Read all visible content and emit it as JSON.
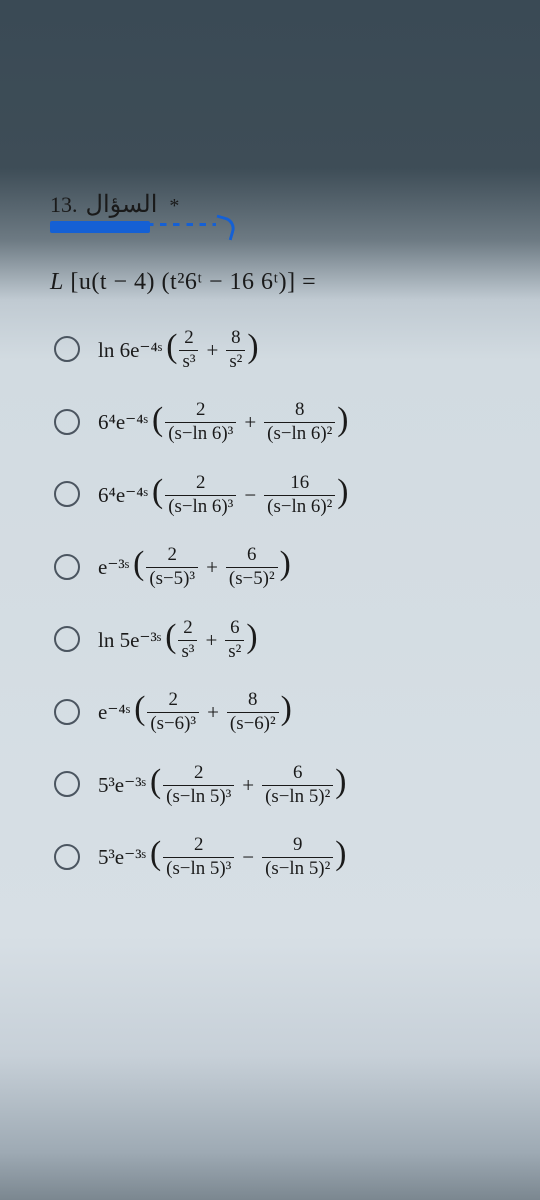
{
  "question": {
    "number": "13.",
    "title_ar": "السؤال",
    "star": "*",
    "stem_prefix": "L",
    "stem_inner": "[u(t − 4) (t²6ᵗ − 16 6ᵗ)] =",
    "underline_color": "#1560d4"
  },
  "options": [
    {
      "id": "opt-a",
      "lead": "ln 6e⁻⁴ˢ",
      "paren": {
        "terms": [
          {
            "num": "2",
            "den": "s³"
          },
          {
            "op": "+"
          },
          {
            "num": "8",
            "den": "s²"
          }
        ]
      }
    },
    {
      "id": "opt-b",
      "lead": "6⁴e⁻⁴ˢ",
      "paren": {
        "terms": [
          {
            "num": "2",
            "den": "(s−ln 6)³"
          },
          {
            "op": "+"
          },
          {
            "num": "8",
            "den": "(s−ln 6)²"
          }
        ]
      }
    },
    {
      "id": "opt-c",
      "lead": "6⁴e⁻⁴ˢ",
      "paren": {
        "terms": [
          {
            "num": "2",
            "den": "(s−ln 6)³"
          },
          {
            "op": "−"
          },
          {
            "num": "16",
            "den": "(s−ln 6)²"
          }
        ]
      }
    },
    {
      "id": "opt-d",
      "lead": "e⁻³ˢ",
      "paren": {
        "terms": [
          {
            "num": "2",
            "den": "(s−5)³"
          },
          {
            "op": "+"
          },
          {
            "num": "6",
            "den": "(s−5)²"
          }
        ]
      }
    },
    {
      "id": "opt-e",
      "lead": "ln 5e⁻³ˢ",
      "paren": {
        "terms": [
          {
            "num": "2",
            "den": "s³"
          },
          {
            "op": "+"
          },
          {
            "num": "6",
            "den": "s²"
          }
        ]
      }
    },
    {
      "id": "opt-f",
      "lead": "e⁻⁴ˢ",
      "paren": {
        "terms": [
          {
            "num": "2",
            "den": "(s−6)³"
          },
          {
            "op": "+"
          },
          {
            "num": "8",
            "den": "(s−6)²"
          }
        ]
      }
    },
    {
      "id": "opt-g",
      "lead": "5³e⁻³ˢ",
      "paren": {
        "terms": [
          {
            "num": "2",
            "den": "(s−ln 5)³"
          },
          {
            "op": "+"
          },
          {
            "num": "6",
            "den": "(s−ln 5)²"
          }
        ]
      }
    },
    {
      "id": "opt-h",
      "lead": "5³e⁻³ˢ",
      "paren": {
        "terms": [
          {
            "num": "2",
            "den": "(s−ln 5)³"
          },
          {
            "op": "−"
          },
          {
            "num": "9",
            "den": "(s−ln 5)²"
          }
        ]
      }
    }
  ],
  "style": {
    "text_color": "#1a1a1a",
    "radio_border": "#4b5560",
    "option_fontsize": 21,
    "stem_fontsize": 24,
    "title_fontsize": 22
  }
}
